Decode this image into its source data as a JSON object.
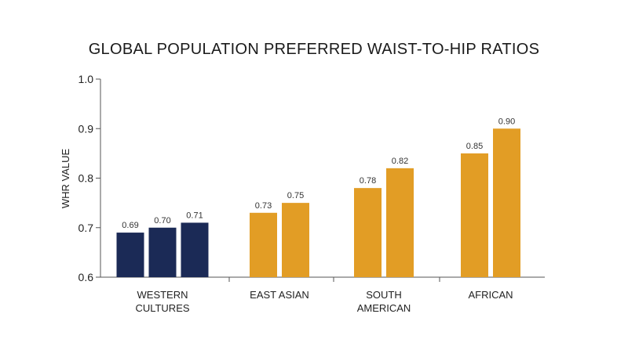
{
  "chart_data": {
    "type": "bar",
    "title": "GLOBAL POPULATION PREFERRED WAIST-TO-HIP RATIOS",
    "xlabel": "",
    "ylabel": "WHR VALUE",
    "ylim": [
      0.6,
      1.0
    ],
    "yticks": [
      "0.6",
      "0.7",
      "0.8",
      "0.9",
      "1.0"
    ],
    "grid": false,
    "colors": {
      "western": "#1b2a56",
      "other": "#e29d25"
    },
    "groups": [
      {
        "label": [
          "WESTERN",
          "CULTURES"
        ],
        "color_key": "western",
        "values": [
          0.69,
          0.7,
          0.71
        ],
        "labels": [
          "0.69",
          "0.70",
          "0.71"
        ]
      },
      {
        "label": [
          "EAST ASIAN"
        ],
        "color_key": "other",
        "values": [
          0.73,
          0.75
        ],
        "labels": [
          "0.73",
          "0.75"
        ]
      },
      {
        "label": [
          "SOUTH",
          "AMERICAN"
        ],
        "color_key": "other",
        "values": [
          0.78,
          0.82
        ],
        "labels": [
          "0.78",
          "0.82"
        ]
      },
      {
        "label": [
          "AFRICAN"
        ],
        "color_key": "other",
        "values": [
          0.85,
          0.9
        ],
        "labels": [
          "0.85",
          "0.90"
        ]
      }
    ]
  }
}
